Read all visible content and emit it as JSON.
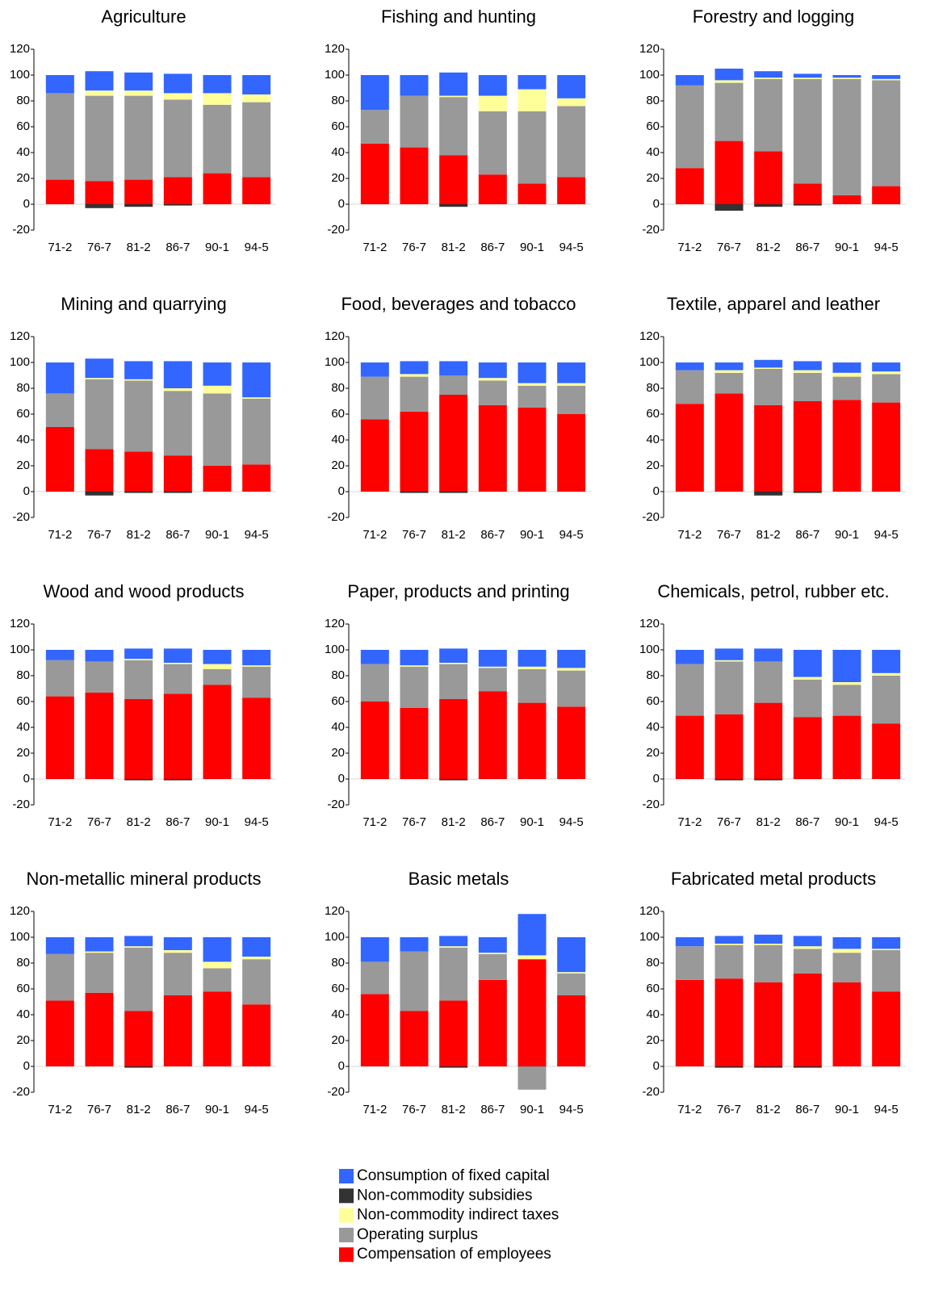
{
  "legend": [
    {
      "name": "Consumption of fixed capital",
      "color": "#3366ff"
    },
    {
      "name": "Non-commodity subsidies",
      "color": "#333333"
    },
    {
      "name": "Non-commodity indirect taxes",
      "color": "#ffff99"
    },
    {
      "name": "Operating surplus",
      "color": "#999999"
    },
    {
      "name": "Compensation of employees",
      "color": "#ff0000"
    }
  ],
  "chart_data": [
    {
      "type": "stacked-bar",
      "title": "Agriculture",
      "categories": [
        "71-2",
        "76-7",
        "81-2",
        "86-7",
        "90-1",
        "94-5"
      ],
      "ylim": [
        -20,
        120
      ],
      "yticks": [
        -20,
        0,
        20,
        40,
        60,
        80,
        100,
        120
      ],
      "series": [
        {
          "values": [
            14,
            15,
            14,
            15,
            14,
            15
          ]
        },
        {
          "values": [
            0,
            -3,
            -2,
            -1,
            0,
            0
          ]
        },
        {
          "values": [
            0,
            4,
            4,
            5,
            9,
            6
          ]
        },
        {
          "values": [
            67,
            66,
            65,
            60,
            53,
            58
          ]
        },
        {
          "values": [
            19,
            18,
            19,
            21,
            24,
            21
          ]
        }
      ]
    },
    {
      "type": "stacked-bar",
      "title": "Fishing and hunting",
      "categories": [
        "71-2",
        "76-7",
        "81-2",
        "86-7",
        "90-1",
        "94-5"
      ],
      "ylim": [
        -20,
        120
      ],
      "yticks": [
        -20,
        0,
        20,
        40,
        60,
        80,
        100,
        120
      ],
      "series": [
        {
          "values": [
            27,
            16,
            18,
            16,
            11,
            18
          ]
        },
        {
          "values": [
            0,
            0,
            -2,
            0,
            0,
            0
          ]
        },
        {
          "values": [
            0,
            0,
            1,
            12,
            17,
            6
          ]
        },
        {
          "values": [
            26,
            40,
            45,
            49,
            56,
            55
          ]
        },
        {
          "values": [
            47,
            44,
            38,
            23,
            16,
            21
          ]
        }
      ]
    },
    {
      "type": "stacked-bar",
      "title": "Forestry and logging",
      "categories": [
        "71-2",
        "76-7",
        "81-2",
        "86-7",
        "90-1",
        "94-5"
      ],
      "ylim": [
        -20,
        120
      ],
      "yticks": [
        -20,
        0,
        20,
        40,
        60,
        80,
        100,
        120
      ],
      "series": [
        {
          "values": [
            8,
            9,
            5,
            3,
            2,
            3
          ]
        },
        {
          "values": [
            0,
            -5,
            -2,
            -1,
            0,
            0
          ]
        },
        {
          "values": [
            0,
            2,
            1,
            1,
            1,
            1
          ]
        },
        {
          "values": [
            64,
            45,
            56,
            81,
            90,
            82
          ]
        },
        {
          "values": [
            28,
            49,
            41,
            16,
            7,
            14
          ]
        }
      ]
    },
    {
      "type": "stacked-bar",
      "title": "Mining and quarrying",
      "categories": [
        "71-2",
        "76-7",
        "81-2",
        "86-7",
        "90-1",
        "94-5"
      ],
      "ylim": [
        -20,
        120
      ],
      "yticks": [
        -20,
        0,
        20,
        40,
        60,
        80,
        100,
        120
      ],
      "series": [
        {
          "values": [
            24,
            15,
            14,
            21,
            18,
            27
          ]
        },
        {
          "values": [
            0,
            -3,
            -1,
            -1,
            0,
            0
          ]
        },
        {
          "values": [
            0,
            1,
            1,
            2,
            6,
            1
          ]
        },
        {
          "values": [
            26,
            54,
            55,
            50,
            56,
            51
          ]
        },
        {
          "values": [
            50,
            33,
            31,
            28,
            20,
            21
          ]
        }
      ]
    },
    {
      "type": "stacked-bar",
      "title": "Food, beverages and tobacco",
      "categories": [
        "71-2",
        "76-7",
        "81-2",
        "86-7",
        "90-1",
        "94-5"
      ],
      "ylim": [
        -20,
        120
      ],
      "yticks": [
        -20,
        0,
        20,
        40,
        60,
        80,
        100,
        120
      ],
      "series": [
        {
          "values": [
            11,
            10,
            11,
            12,
            16,
            16
          ]
        },
        {
          "values": [
            0,
            -1,
            -1,
            0,
            0,
            0
          ]
        },
        {
          "values": [
            0,
            2,
            0,
            2,
            2,
            2
          ]
        },
        {
          "values": [
            33,
            27,
            15,
            19,
            17,
            22
          ]
        },
        {
          "values": [
            56,
            62,
            75,
            67,
            65,
            60
          ]
        }
      ]
    },
    {
      "type": "stacked-bar",
      "title": "Textile, apparel and leather",
      "categories": [
        "71-2",
        "76-7",
        "81-2",
        "86-7",
        "90-1",
        "94-5"
      ],
      "ylim": [
        -20,
        120
      ],
      "yticks": [
        -20,
        0,
        20,
        40,
        60,
        80,
        100,
        120
      ],
      "series": [
        {
          "values": [
            6,
            6,
            6,
            7,
            8,
            7
          ]
        },
        {
          "values": [
            0,
            0,
            -3,
            -1,
            0,
            0
          ]
        },
        {
          "values": [
            0,
            2,
            1,
            2,
            3,
            2
          ]
        },
        {
          "values": [
            26,
            16,
            28,
            22,
            18,
            22
          ]
        },
        {
          "values": [
            68,
            76,
            67,
            70,
            71,
            69
          ]
        }
      ]
    },
    {
      "type": "stacked-bar",
      "title": "Wood and wood products",
      "categories": [
        "71-2",
        "76-7",
        "81-2",
        "86-7",
        "90-1",
        "94-5"
      ],
      "ylim": [
        -20,
        120
      ],
      "yticks": [
        -20,
        0,
        20,
        40,
        60,
        80,
        100,
        120
      ],
      "series": [
        {
          "values": [
            8,
            9,
            8,
            11,
            11,
            12
          ]
        },
        {
          "values": [
            0,
            0,
            -1,
            -1,
            0,
            0
          ]
        },
        {
          "values": [
            0,
            0,
            1,
            1,
            4,
            1
          ]
        },
        {
          "values": [
            28,
            24,
            30,
            23,
            12,
            24
          ]
        },
        {
          "values": [
            64,
            67,
            62,
            66,
            73,
            63
          ]
        }
      ]
    },
    {
      "type": "stacked-bar",
      "title": "Paper, products and printing",
      "categories": [
        "71-2",
        "76-7",
        "81-2",
        "86-7",
        "90-1",
        "94-5"
      ],
      "ylim": [
        -20,
        120
      ],
      "yticks": [
        -20,
        0,
        20,
        40,
        60,
        80,
        100,
        120
      ],
      "series": [
        {
          "values": [
            11,
            12,
            11,
            13,
            13,
            14
          ]
        },
        {
          "values": [
            0,
            0,
            -1,
            0,
            0,
            0
          ]
        },
        {
          "values": [
            0,
            1,
            1,
            1,
            2,
            2
          ]
        },
        {
          "values": [
            29,
            32,
            27,
            18,
            26,
            28
          ]
        },
        {
          "values": [
            60,
            55,
            62,
            68,
            59,
            56
          ]
        }
      ]
    },
    {
      "type": "stacked-bar",
      "title": "Chemicals, petrol, rubber etc.",
      "categories": [
        "71-2",
        "76-7",
        "81-2",
        "86-7",
        "90-1",
        "94-5"
      ],
      "ylim": [
        -20,
        120
      ],
      "yticks": [
        -20,
        0,
        20,
        40,
        60,
        80,
        100,
        120
      ],
      "series": [
        {
          "values": [
            11,
            9,
            10,
            21,
            25,
            18
          ]
        },
        {
          "values": [
            0,
            -1,
            -1,
            0,
            0,
            0
          ]
        },
        {
          "values": [
            0,
            1,
            0,
            2,
            2,
            2
          ]
        },
        {
          "values": [
            40,
            41,
            32,
            29,
            24,
            37
          ]
        },
        {
          "values": [
            49,
            50,
            59,
            48,
            49,
            43
          ]
        }
      ]
    },
    {
      "type": "stacked-bar",
      "title": "Non-metallic mineral products",
      "categories": [
        "71-2",
        "76-7",
        "81-2",
        "86-7",
        "90-1",
        "94-5"
      ],
      "ylim": [
        -20,
        120
      ],
      "yticks": [
        -20,
        0,
        20,
        40,
        60,
        80,
        100,
        120
      ],
      "series": [
        {
          "values": [
            13,
            11,
            8,
            10,
            19,
            15
          ]
        },
        {
          "values": [
            0,
            0,
            -1,
            0,
            0,
            0
          ]
        },
        {
          "values": [
            0,
            1,
            1,
            2,
            5,
            2
          ]
        },
        {
          "values": [
            36,
            31,
            49,
            33,
            18,
            35
          ]
        },
        {
          "values": [
            51,
            57,
            43,
            55,
            58,
            48
          ]
        }
      ]
    },
    {
      "type": "stacked-bar",
      "title": "Basic metals",
      "categories": [
        "71-2",
        "76-7",
        "81-2",
        "86-7",
        "90-1",
        "94-5"
      ],
      "ylim": [
        -20,
        120
      ],
      "yticks": [
        -20,
        0,
        20,
        40,
        60,
        80,
        100,
        120
      ],
      "series": [
        {
          "values": [
            19,
            11,
            8,
            12,
            32,
            27
          ]
        },
        {
          "values": [
            0,
            0,
            -1,
            0,
            0,
            0
          ]
        },
        {
          "values": [
            0,
            0,
            1,
            1,
            3,
            1
          ]
        },
        {
          "values": [
            25,
            46,
            41,
            20,
            -18,
            17
          ]
        },
        {
          "values": [
            56,
            43,
            51,
            67,
            83,
            55
          ]
        }
      ]
    },
    {
      "type": "stacked-bar",
      "title": "Fabricated metal products",
      "categories": [
        "71-2",
        "76-7",
        "81-2",
        "86-7",
        "90-1",
        "94-5"
      ],
      "ylim": [
        -20,
        120
      ],
      "yticks": [
        -20,
        0,
        20,
        40,
        60,
        80,
        100,
        120
      ],
      "series": [
        {
          "values": [
            7,
            6,
            7,
            8,
            9,
            9
          ]
        },
        {
          "values": [
            0,
            -1,
            -1,
            -1,
            0,
            0
          ]
        },
        {
          "values": [
            0,
            1,
            1,
            2,
            3,
            1
          ]
        },
        {
          "values": [
            26,
            26,
            29,
            19,
            23,
            32
          ]
        },
        {
          "values": [
            67,
            68,
            65,
            72,
            65,
            58
          ]
        }
      ]
    }
  ]
}
